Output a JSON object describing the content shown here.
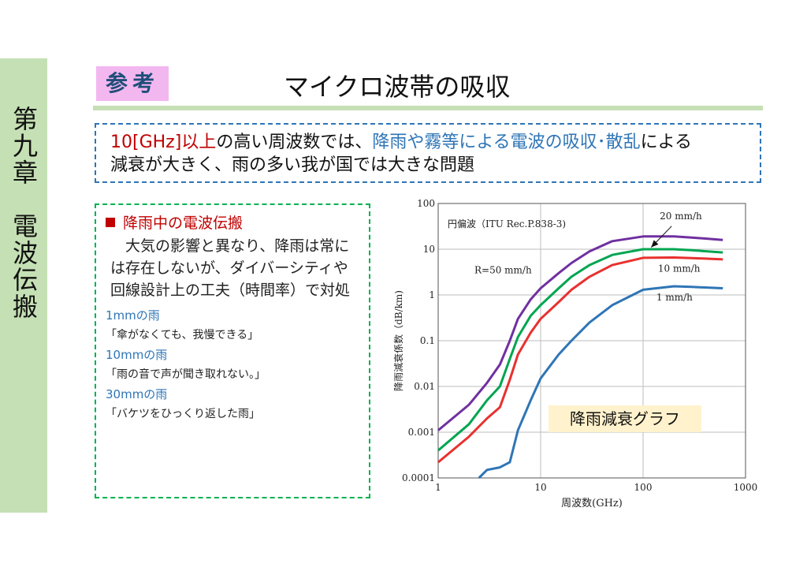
{
  "sidebar": {
    "chapter": "第九章　電波伝搬"
  },
  "header": {
    "badge": "参考",
    "title": "マイクロ波帯の吸収"
  },
  "note": {
    "freq": "10[GHz]以上",
    "mid": "の高い周波数では、",
    "cause": "降雨や霧等による電波の吸収･散乱",
    "end": "による",
    "line2": "減衰が大きく、雨の多い我が国では大きな問題"
  },
  "panel": {
    "heading": "降雨中の電波伝搬",
    "body": "　大気の影響と異なり、降雨は常には存在しないが、ダイバーシティや回線設計上の工夫（時間率）で対処",
    "rains": [
      {
        "title": "1mmの雨",
        "desc": "「傘がなくても、我慢できる」"
      },
      {
        "title": "10mmの雨",
        "desc": "「雨の音で声が聞き取れない。」"
      },
      {
        "title": "30mmの雨",
        "desc": "「バケツをひっくり返した雨」"
      }
    ]
  },
  "caption": "降雨減衰グラフ",
  "chart_data": {
    "type": "line",
    "title": "円偏波（ITU Rec.P.838-3)",
    "xlabel": "周波数(GHz)",
    "ylabel": "降雨減衰係数（dB/km)",
    "xscale": "log",
    "yscale": "log",
    "xlim": [
      1,
      1000
    ],
    "ylim": [
      0.0001,
      100
    ],
    "xticks": [
      "1",
      "10",
      "100",
      "1000"
    ],
    "yticks": [
      "0.0001",
      "0.001",
      "0.01",
      "0.1",
      "1",
      "10",
      "100"
    ],
    "grid": true,
    "annotations": [
      {
        "text": "R=50 mm/h",
        "series": "50 mm/h"
      },
      {
        "text": "20 mm/h",
        "series": "20 mm/h"
      },
      {
        "text": "10 mm/h",
        "series": "10 mm/h"
      },
      {
        "text": "1 mm/h",
        "series": "1 mm/h"
      }
    ],
    "series": [
      {
        "name": "50 mm/h",
        "color": "#7030a0",
        "x": [
          1,
          2,
          3,
          4,
          5,
          6,
          8,
          10,
          15,
          20,
          30,
          50,
          100,
          200,
          300,
          600
        ],
        "y": [
          0.0011,
          0.004,
          0.012,
          0.03,
          0.1,
          0.3,
          0.8,
          1.4,
          3,
          5,
          9,
          15,
          19,
          19,
          18,
          16
        ]
      },
      {
        "name": "20 mm/h",
        "color": "#00a550",
        "x": [
          1,
          2,
          3,
          4,
          5,
          6,
          8,
          10,
          15,
          20,
          30,
          50,
          100,
          200,
          300,
          600
        ],
        "y": [
          0.0004,
          0.0015,
          0.005,
          0.01,
          0.04,
          0.12,
          0.35,
          0.6,
          1.4,
          2.5,
          4.5,
          7.5,
          10,
          10,
          9.5,
          8.5
        ]
      },
      {
        "name": "10 mm/h",
        "color": "#e8312f",
        "x": [
          1,
          2,
          3,
          4,
          5,
          6,
          8,
          10,
          15,
          20,
          30,
          50,
          100,
          200,
          300,
          600
        ],
        "y": [
          0.00022,
          0.0008,
          0.002,
          0.0035,
          0.014,
          0.05,
          0.15,
          0.3,
          0.7,
          1.3,
          2.5,
          4.5,
          6.5,
          6.6,
          6.4,
          6
        ]
      },
      {
        "name": "1 mm/h",
        "color": "#2e75b6",
        "x": [
          2.5,
          3,
          4,
          5,
          6,
          8,
          10,
          15,
          20,
          30,
          50,
          100,
          200,
          300,
          600
        ],
        "y": [
          0.0001,
          0.00015,
          0.00017,
          0.00022,
          0.0011,
          0.005,
          0.015,
          0.05,
          0.1,
          0.25,
          0.6,
          1.3,
          1.55,
          1.5,
          1.4
        ]
      }
    ]
  }
}
